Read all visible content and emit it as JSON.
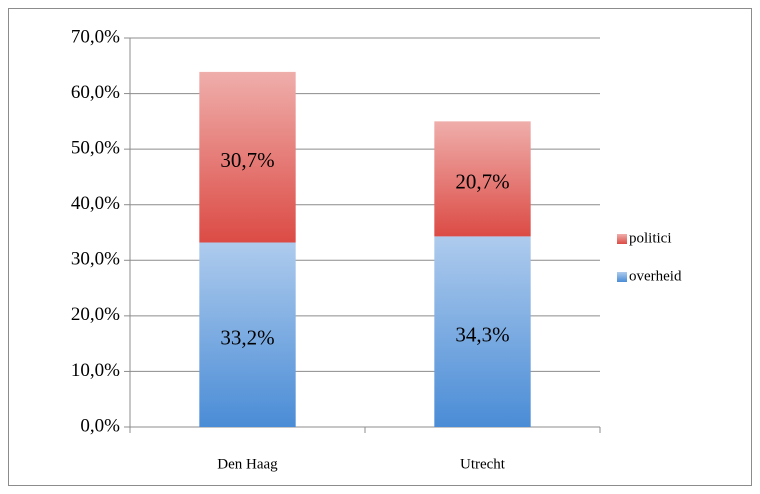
{
  "chart_data": {
    "type": "stacked_bar",
    "categories": [
      "Den Haag",
      "Utrecht"
    ],
    "series": [
      {
        "name": "overheid",
        "color": "#4a8cd6",
        "values": [
          33.2,
          34.3
        ],
        "value_labels": [
          "33,2%",
          "34,3%"
        ]
      },
      {
        "name": "politici",
        "color": "#dc4b45",
        "values": [
          30.7,
          20.7
        ],
        "value_labels": [
          "30,7%",
          "20,7%"
        ]
      }
    ],
    "ylim": [
      0,
      70
    ],
    "yticks": [
      {
        "value": 0,
        "label": "0,0%"
      },
      {
        "value": 10,
        "label": "10,0%"
      },
      {
        "value": 20,
        "label": "20,0%"
      },
      {
        "value": 30,
        "label": "30,0%"
      },
      {
        "value": 40,
        "label": "40,0%"
      },
      {
        "value": 50,
        "label": "50,0%"
      },
      {
        "value": 60,
        "label": "60,0%"
      },
      {
        "value": 70,
        "label": "70,0%"
      }
    ],
    "grid": true,
    "legend": "right"
  }
}
